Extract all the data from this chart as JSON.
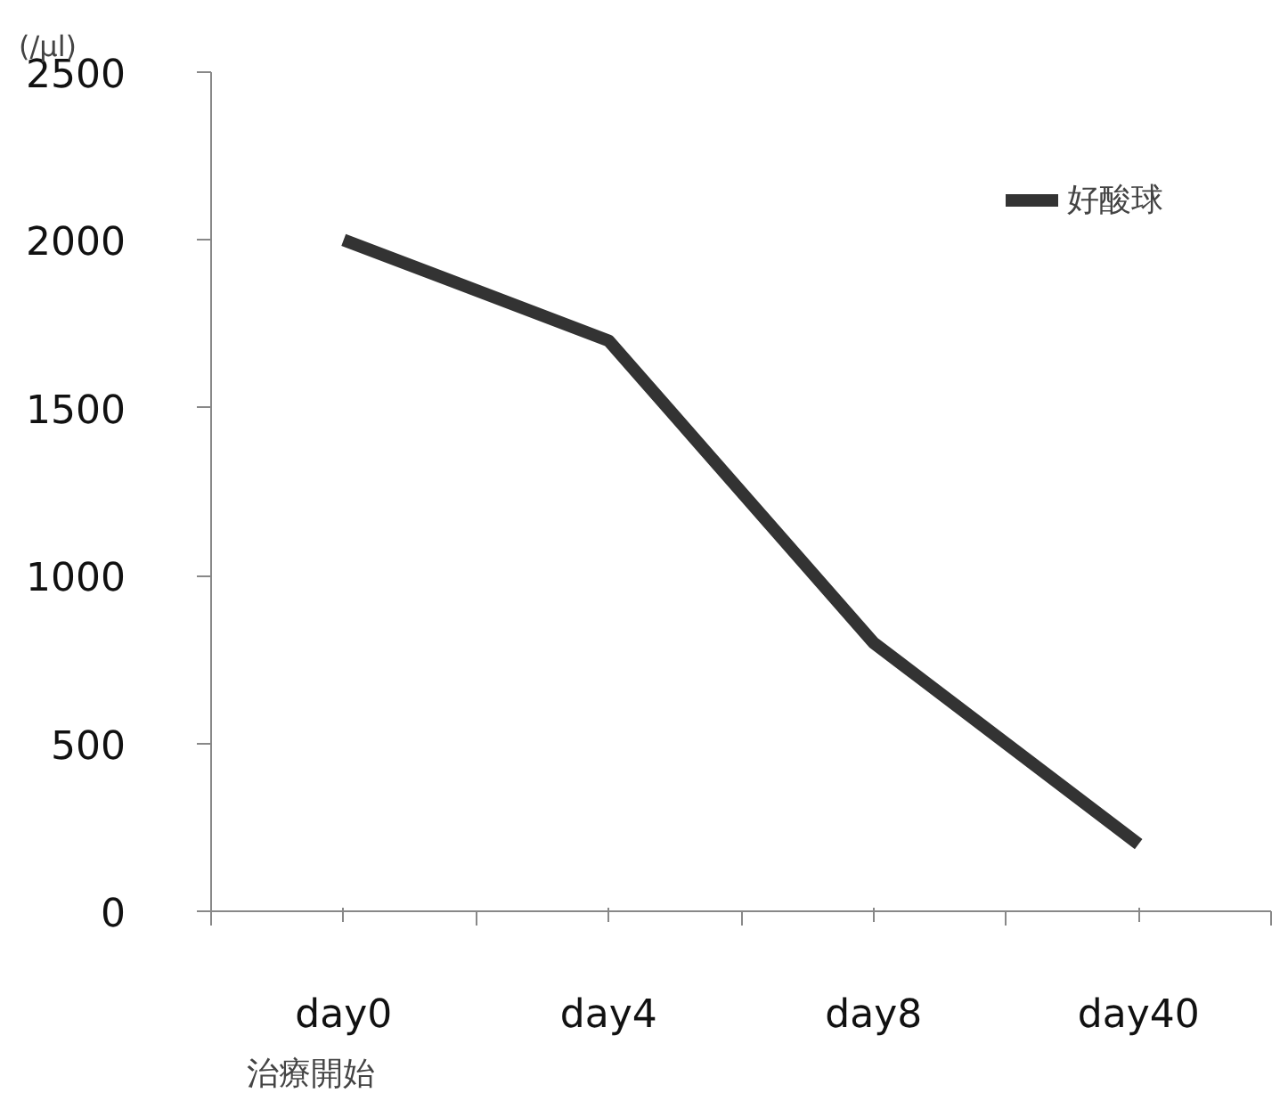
{
  "chart_data": {
    "type": "line",
    "ylabel": "(/μl)",
    "categories": [
      "day0",
      "day4",
      "day8",
      "day40"
    ],
    "series": [
      {
        "name": "好酸球",
        "color": "#333333",
        "values": [
          2000,
          1700,
          800,
          200
        ]
      }
    ],
    "ylim": [
      0,
      2500
    ],
    "yticks": [
      0,
      500,
      1000,
      1500,
      2000,
      2500
    ],
    "grid": false,
    "legend": "top right",
    "marker": "none",
    "line_style": "solid",
    "annotations": [
      "治療開始"
    ]
  }
}
